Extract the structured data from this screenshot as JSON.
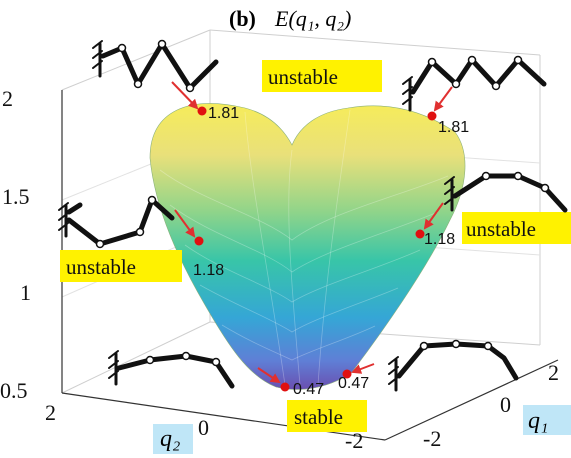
{
  "figure": {
    "panel_label": "(b)",
    "function_label": "E(q₁, q₂)"
  },
  "axes": {
    "z_ticks": [
      "2",
      "1.5",
      "1",
      "0.5"
    ],
    "q2_ticks": [
      "2",
      "0",
      "-2"
    ],
    "q1_ticks": [
      "-2",
      "0",
      "2"
    ],
    "q2_label": "q₂",
    "q1_label": "q₁"
  },
  "annotations": {
    "top_left_value": "1.81",
    "top_right_value": "1.81",
    "mid_left_value": "1.18",
    "mid_right_value": "1.18",
    "bottom_left_value": "0.47",
    "bottom_right_value": "0.47",
    "unstable_top": "unstable",
    "unstable_left": "unstable",
    "unstable_right": "unstable",
    "stable_bottom": "stable"
  },
  "colors": {
    "highlight_yellow": "#fff200",
    "highlight_blue": "#bfe6f7",
    "marker_red": "#e01010",
    "arrow_red": "#e03030"
  }
}
